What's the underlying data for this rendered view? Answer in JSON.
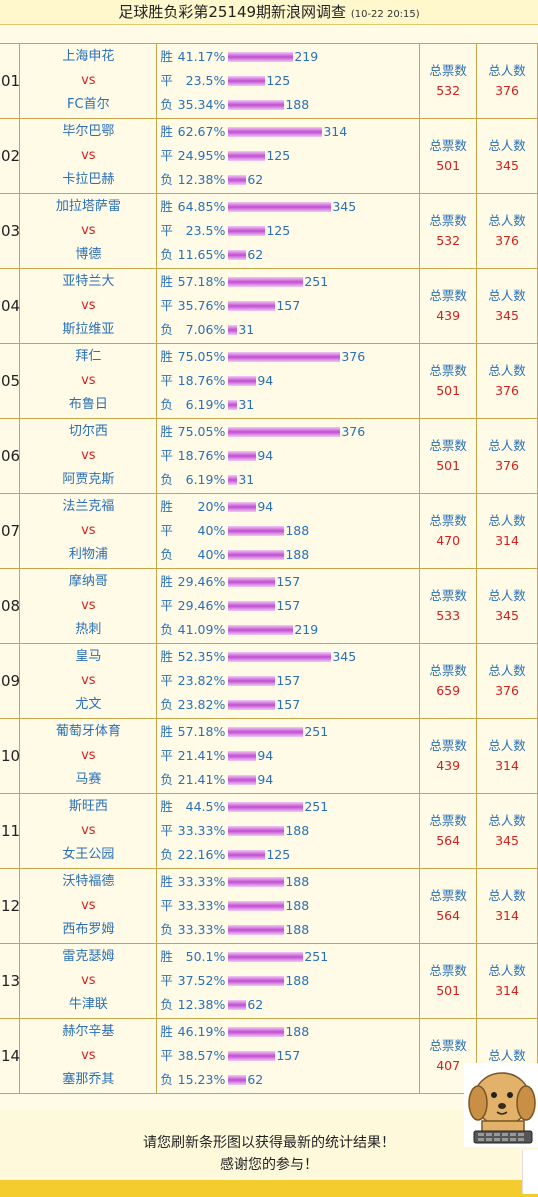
{
  "header": {
    "title": "足球胜负彩第25149期新浪网调查",
    "date": "(10-22 20:15)"
  },
  "labels": {
    "win": "胜",
    "draw": "平",
    "loss": "负",
    "vs": "vs",
    "total_votes": "总票数",
    "total_people": "总人数"
  },
  "matches": [
    {
      "no": "01",
      "home": "上海申花",
      "away": "FC首尔",
      "win_pct": "41.17%",
      "win_cnt": 219,
      "draw_pct": "23.5%",
      "draw_cnt": 125,
      "loss_pct": "35.34%",
      "loss_cnt": 188,
      "votes": 532,
      "people": 376
    },
    {
      "no": "02",
      "home": "毕尔巴鄂",
      "away": "卡拉巴赫",
      "win_pct": "62.67%",
      "win_cnt": 314,
      "draw_pct": "24.95%",
      "draw_cnt": 125,
      "loss_pct": "12.38%",
      "loss_cnt": 62,
      "votes": 501,
      "people": 345
    },
    {
      "no": "03",
      "home": "加拉塔萨雷",
      "away": "博德",
      "win_pct": "64.85%",
      "win_cnt": 345,
      "draw_pct": "23.5%",
      "draw_cnt": 125,
      "loss_pct": "11.65%",
      "loss_cnt": 62,
      "votes": 532,
      "people": 376
    },
    {
      "no": "04",
      "home": "亚特兰大",
      "away": "斯拉维亚",
      "win_pct": "57.18%",
      "win_cnt": 251,
      "draw_pct": "35.76%",
      "draw_cnt": 157,
      "loss_pct": "7.06%",
      "loss_cnt": 31,
      "votes": 439,
      "people": 345
    },
    {
      "no": "05",
      "home": "拜仁",
      "away": "布鲁日",
      "win_pct": "75.05%",
      "win_cnt": 376,
      "draw_pct": "18.76%",
      "draw_cnt": 94,
      "loss_pct": "6.19%",
      "loss_cnt": 31,
      "votes": 501,
      "people": 376
    },
    {
      "no": "06",
      "home": "切尔西",
      "away": "阿贾克斯",
      "win_pct": "75.05%",
      "win_cnt": 376,
      "draw_pct": "18.76%",
      "draw_cnt": 94,
      "loss_pct": "6.19%",
      "loss_cnt": 31,
      "votes": 501,
      "people": 376
    },
    {
      "no": "07",
      "home": "法兰克福",
      "away": "利物浦",
      "win_pct": "20%",
      "win_cnt": 94,
      "draw_pct": "40%",
      "draw_cnt": 188,
      "loss_pct": "40%",
      "loss_cnt": 188,
      "votes": 470,
      "people": 314
    },
    {
      "no": "08",
      "home": "摩纳哥",
      "away": "热刺",
      "win_pct": "29.46%",
      "win_cnt": 157,
      "draw_pct": "29.46%",
      "draw_cnt": 157,
      "loss_pct": "41.09%",
      "loss_cnt": 219,
      "votes": 533,
      "people": 345
    },
    {
      "no": "09",
      "home": "皇马",
      "away": "尤文",
      "win_pct": "52.35%",
      "win_cnt": 345,
      "draw_pct": "23.82%",
      "draw_cnt": 157,
      "loss_pct": "23.82%",
      "loss_cnt": 157,
      "votes": 659,
      "people": 376
    },
    {
      "no": "10",
      "home": "葡萄牙体育",
      "away": "马赛",
      "win_pct": "57.18%",
      "win_cnt": 251,
      "draw_pct": "21.41%",
      "draw_cnt": 94,
      "loss_pct": "21.41%",
      "loss_cnt": 94,
      "votes": 439,
      "people": 314
    },
    {
      "no": "11",
      "home": "斯旺西",
      "away": "女王公园",
      "win_pct": "44.5%",
      "win_cnt": 251,
      "draw_pct": "33.33%",
      "draw_cnt": 188,
      "loss_pct": "22.16%",
      "loss_cnt": 125,
      "votes": 564,
      "people": 345
    },
    {
      "no": "12",
      "home": "沃特福德",
      "away": "西布罗姆",
      "win_pct": "33.33%",
      "win_cnt": 188,
      "draw_pct": "33.33%",
      "draw_cnt": 188,
      "loss_pct": "33.33%",
      "loss_cnt": 188,
      "votes": 564,
      "people": 314
    },
    {
      "no": "13",
      "home": "雷克瑟姆",
      "away": "牛津联",
      "win_pct": "50.1%",
      "win_cnt": 251,
      "draw_pct": "37.52%",
      "draw_cnt": 188,
      "loss_pct": "12.38%",
      "loss_cnt": 62,
      "votes": 501,
      "people": 314
    },
    {
      "no": "14",
      "home": "赫尔辛基",
      "away": "塞那乔其",
      "win_pct": "46.19%",
      "win_cnt": 188,
      "draw_pct": "38.57%",
      "draw_cnt": 157,
      "loss_pct": "15.23%",
      "loss_cnt": 62,
      "votes": 407,
      "people": ""
    }
  ],
  "footer": {
    "line1": "请您刷新条形图以获得最新的统计结果！",
    "line2": "感谢您的参与！"
  },
  "colors": {
    "bar": "#c04ed1",
    "vs": "#d42020",
    "team": "#2a6fb8",
    "border": "#c9a54a",
    "footer_bar": "#f5cc2e"
  },
  "icons": {
    "mascot": "dog-mascot-icon"
  }
}
